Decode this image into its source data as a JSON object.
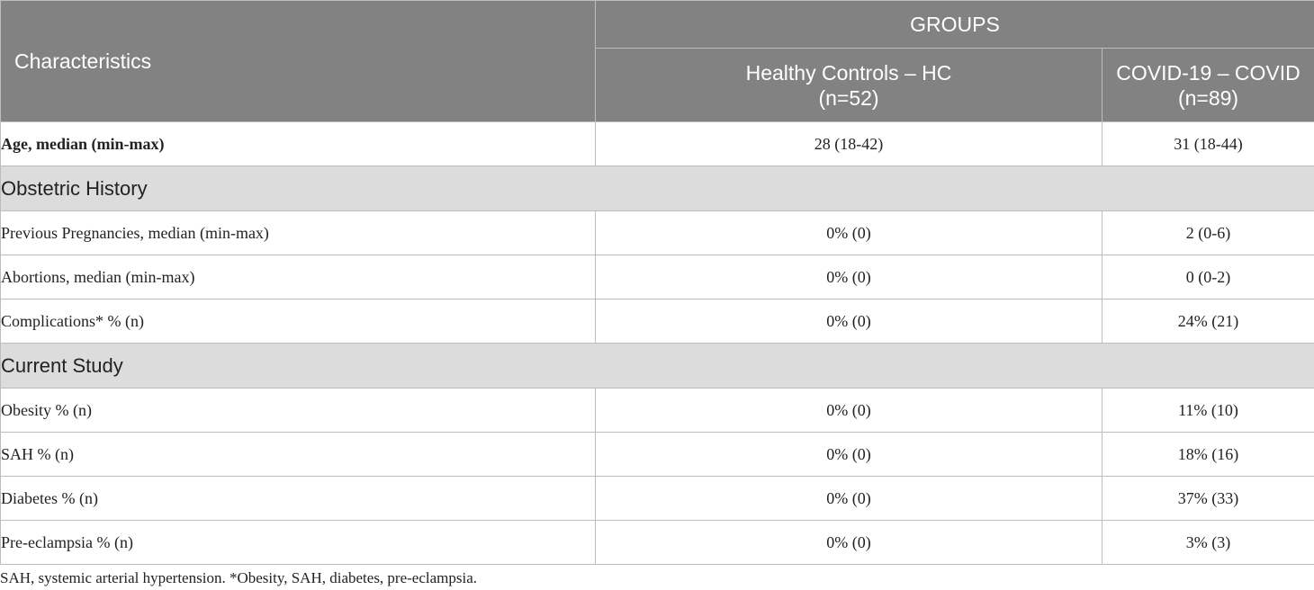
{
  "header": {
    "characteristics": "Characteristics",
    "groups": "GROUPS",
    "hc_line1": "Healthy Controls – HC",
    "hc_line2": "(n=52)",
    "covid_line1": "COVID-19 – COVID",
    "covid_line2": "(n=89)"
  },
  "rows": {
    "age": {
      "label": "Age, median (min-max)",
      "hc": "28 (18-42)",
      "covid": "31 (18-44)"
    },
    "section_obstetric": "Obstetric History",
    "prev_pregnancies": {
      "label": "Previous Pregnancies, median (min-max)",
      "hc": "0% (0)",
      "covid": "2 (0-6)"
    },
    "abortions": {
      "label": "Abortions, median (min-max)",
      "hc": "0% (0)",
      "covid": "0 (0-2)"
    },
    "complications": {
      "label": "Complications* % (n)",
      "hc": "0% (0)",
      "covid": "24% (21)"
    },
    "section_current": "Current Study",
    "obesity": {
      "label": "Obesity % (n)",
      "hc": "0% (0)",
      "covid": "11% (10)"
    },
    "sah": {
      "label": "SAH % (n)",
      "hc": "0% (0)",
      "covid": "18% (16)"
    },
    "diabetes": {
      "label": "Diabetes % (n)",
      "hc": "0% (0)",
      "covid": "37% (33)"
    },
    "preeclampsia": {
      "label": "Pre-eclampsia % (n)",
      "hc": "0% (0)",
      "covid": "3% (3)"
    }
  },
  "footnote": "SAH, systemic arterial hypertension. *Obesity, SAH, diabetes, pre-eclampsia.",
  "colors": {
    "header_bg": "#828282",
    "section_bg": "#dcdcdc",
    "border": "#bdbdbd"
  }
}
